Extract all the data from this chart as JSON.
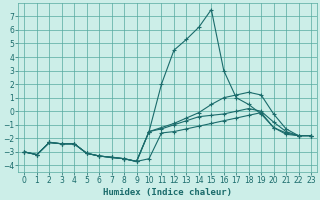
{
  "xlabel": "Humidex (Indice chaleur)",
  "bg_color": "#cceee8",
  "grid_color": "#55aaa0",
  "line_color": "#1a6b6b",
  "xlim": [
    -0.5,
    23.5
  ],
  "ylim": [
    -4.5,
    8
  ],
  "yticks": [
    -4,
    -3,
    -2,
    -1,
    0,
    1,
    2,
    3,
    4,
    5,
    6,
    7
  ],
  "xticks": [
    0,
    1,
    2,
    3,
    4,
    5,
    6,
    7,
    8,
    9,
    10,
    11,
    12,
    13,
    14,
    15,
    16,
    17,
    18,
    19,
    20,
    21,
    22,
    23
  ],
  "lines": [
    {
      "x": [
        0,
        1,
        2,
        3,
        4,
        5,
        6,
        7,
        8,
        9,
        10,
        11,
        12,
        13,
        14,
        15,
        16,
        17,
        18,
        19,
        20,
        21,
        22,
        23
      ],
      "y": [
        -3.0,
        -3.2,
        -2.3,
        -2.4,
        -2.4,
        -3.1,
        -3.3,
        -3.4,
        -3.5,
        -3.7,
        -3.5,
        -1.6,
        -1.5,
        -1.3,
        -1.1,
        -0.9,
        -0.7,
        -0.5,
        -0.3,
        -0.1,
        -1.2,
        -1.7,
        -1.8,
        -1.8
      ]
    },
    {
      "x": [
        0,
        1,
        2,
        3,
        4,
        5,
        6,
        7,
        8,
        9,
        10,
        11,
        12,
        13,
        14,
        15,
        16,
        17,
        18,
        19,
        20,
        21,
        22,
        23
      ],
      "y": [
        -3.0,
        -3.2,
        -2.3,
        -2.4,
        -2.4,
        -3.1,
        -3.3,
        -3.4,
        -3.5,
        -3.7,
        -1.5,
        -1.3,
        -1.0,
        -0.7,
        -0.4,
        -0.3,
        -0.2,
        0.0,
        0.2,
        0.0,
        -0.8,
        -1.5,
        -1.8,
        -1.8
      ]
    },
    {
      "x": [
        0,
        1,
        2,
        3,
        4,
        5,
        6,
        7,
        8,
        9,
        10,
        11,
        12,
        13,
        14,
        15,
        16,
        17,
        18,
        19,
        20,
        21,
        22,
        23
      ],
      "y": [
        -3.0,
        -3.2,
        -2.3,
        -2.4,
        -2.4,
        -3.1,
        -3.3,
        -3.4,
        -3.5,
        -3.7,
        -1.5,
        -1.2,
        -0.9,
        -0.5,
        -0.1,
        0.5,
        1.0,
        1.2,
        1.4,
        1.2,
        -0.2,
        -1.3,
        -1.8,
        -1.8
      ]
    },
    {
      "x": [
        0,
        1,
        2,
        3,
        4,
        5,
        6,
        7,
        8,
        9,
        10,
        11,
        12,
        13,
        14,
        15,
        16,
        17,
        18,
        19,
        20,
        21,
        22,
        23
      ],
      "y": [
        -3.0,
        -3.2,
        -2.3,
        -2.4,
        -2.4,
        -3.1,
        -3.3,
        -3.4,
        -3.5,
        -3.7,
        -1.5,
        2.0,
        4.5,
        5.3,
        6.2,
        7.5,
        3.0,
        1.0,
        0.5,
        -0.2,
        -1.2,
        -1.6,
        -1.8,
        -1.8
      ]
    }
  ]
}
